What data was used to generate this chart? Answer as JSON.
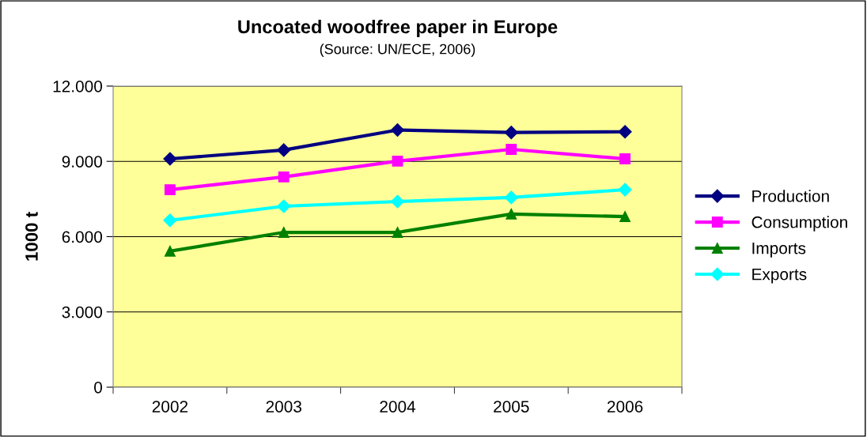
{
  "chart_data": {
    "type": "line",
    "title": "Uncoated woodfree paper in Europe",
    "subtitle": "(Source: UN/ECE, 2006)",
    "ylabel": "1000 t",
    "categories": [
      "2002",
      "2003",
      "2004",
      "2005",
      "2006"
    ],
    "series": [
      {
        "name": "Production",
        "color": "#000080",
        "marker": "diamond",
        "values": [
          9100,
          9450,
          10250,
          10150,
          10180
        ]
      },
      {
        "name": "Consumption",
        "color": "#ff00ff",
        "marker": "square",
        "values": [
          7870,
          8380,
          9010,
          9480,
          9100
        ]
      },
      {
        "name": "Imports",
        "color": "#008000",
        "marker": "triangle",
        "values": [
          5420,
          6170,
          6170,
          6900,
          6800
        ]
      },
      {
        "name": "Exports",
        "color": "#00ffff",
        "marker": "diamond",
        "values": [
          6650,
          7210,
          7400,
          7560,
          7870
        ]
      }
    ],
    "ylim": [
      0,
      12000
    ],
    "yticks": [
      {
        "value": 0,
        "label": "0"
      },
      {
        "value": 3000,
        "label": "3.000"
      },
      {
        "value": 6000,
        "label": "6.000"
      },
      {
        "value": 9000,
        "label": "9.000"
      },
      {
        "value": 12000,
        "label": "12.000"
      }
    ],
    "grid": "y",
    "legend": "right",
    "line_style": "solid"
  }
}
